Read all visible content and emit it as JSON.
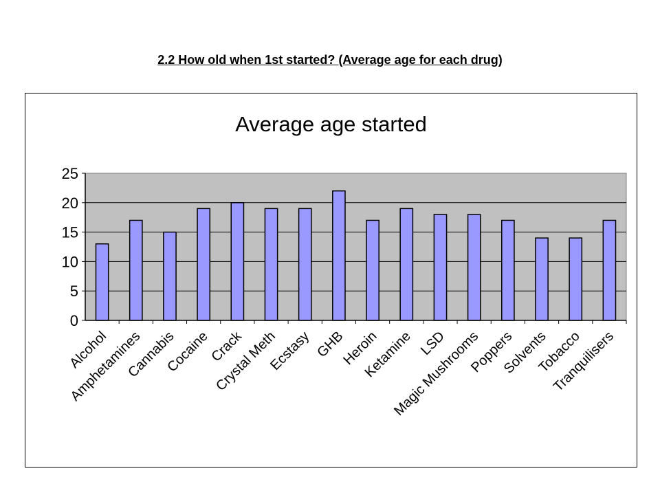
{
  "page_heading": "2.2 How old when 1st started? (Average age for each drug)",
  "chart_data": {
    "type": "bar",
    "title": "Average age started",
    "xlabel": "",
    "ylabel": "",
    "categories": [
      "Alcohol",
      "Amphetamines",
      "Cannabis",
      "Cocaine",
      "Crack",
      "Crystal Meth",
      "Ecstasy",
      "GHB",
      "Heroin",
      "Ketamine",
      "LSD",
      "Magic Mushrooms",
      "Poppers",
      "Solvents",
      "Tobacco",
      "Tranquilisers"
    ],
    "category_labels": [
      "Alcohol",
      "Amphetamines",
      "Cannabis",
      "Cocaine",
      "Crack",
      "Crystal Meth",
      "Ecstasy",
      "GHB",
      "Heroin",
      "Ketamine",
      "LSD",
      "Magic Mushrooms",
      "Poppers",
      "Solvents",
      "Tobacco",
      "Tranquilisers"
    ],
    "values": [
      13,
      17,
      15,
      19,
      20,
      19,
      19,
      22,
      17,
      19,
      18,
      18,
      17,
      14,
      14,
      17
    ],
    "ylim": [
      0,
      25
    ],
    "yticks": [
      0,
      5,
      10,
      15,
      20,
      25
    ],
    "grid": true,
    "legend": "none",
    "colors": {
      "bar": "#9999ff",
      "plot_background": "#c0c0c0",
      "outline": "#000000"
    }
  }
}
